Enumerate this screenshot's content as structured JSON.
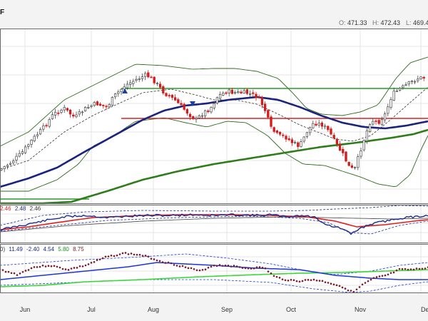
{
  "header": {
    "title_fragment": "F",
    "ohlc": [
      {
        "key": "O:",
        "value": "471.33"
      },
      {
        "key": "H:",
        "value": "472.43"
      },
      {
        "key": "L:",
        "value": "469.46"
      }
    ]
  },
  "colors": {
    "bull": "#4a4a4a",
    "bear": "#d01c1c",
    "ma_fast": "#1a237e",
    "ma_slow": "#2e7d1a",
    "bband": "#2e6b1a",
    "ema": "#333333",
    "hline_green": "#2a9a2a",
    "hline_red": "#d92222",
    "rsi_blue": "#1b2b8a",
    "rsi_red": "#e02020",
    "kst_dots": "#7b1a28",
    "kst_blue": "#1b36d6",
    "kst_green": "#39d839",
    "legend_green": "#1d8f1d",
    "signal_up": "#1a3ea8"
  },
  "legends": {
    "panel2": [
      "2.46",
      "2.48",
      "2.46"
    ],
    "panel3": [
      "0)",
      "11.49",
      "-2.40",
      "4.54",
      "5.80",
      "8.75"
    ]
  },
  "chart_data": {
    "type": "candlestick",
    "title": "",
    "x_tick_labels": [
      "Jun",
      "Jul",
      "Aug",
      "Sep",
      "Oct",
      "Nov",
      "De"
    ],
    "price_range_note": "no y-axis labels visible",
    "horizontal_levels": [
      {
        "name": "resistance",
        "color": "green"
      },
      {
        "name": "support",
        "color": "red"
      }
    ],
    "signals": [
      {
        "type": "up-triangle",
        "month": "Jul"
      },
      {
        "type": "down-triangle",
        "month": "Aug"
      }
    ]
  }
}
